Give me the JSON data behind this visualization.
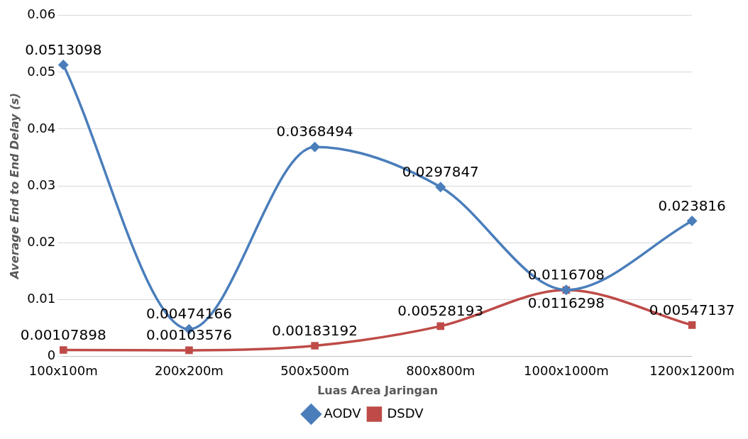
{
  "chart_data": {
    "type": "line",
    "xlabel": "Luas Area Jaringan",
    "ylabel": "Average End to End Delay (s)",
    "categories": [
      "100x100m",
      "200x200m",
      "500x500m",
      "800x800m",
      "1000x1000m",
      "1200x1200m"
    ],
    "series": [
      {
        "name": "AODV",
        "color": "#4a7ebb",
        "marker": "diamond",
        "values": [
          0.0513098,
          0.00474166,
          0.0368494,
          0.0297847,
          0.0116708,
          0.023816
        ]
      },
      {
        "name": "DSDV",
        "color": "#be4b48",
        "marker": "square",
        "values": [
          0.00107898,
          0.00103576,
          0.00183192,
          0.00528193,
          0.0116298,
          0.00547137
        ]
      }
    ],
    "ylim": [
      0,
      0.06
    ],
    "yticks": [
      0,
      0.01,
      0.02,
      0.03,
      0.04,
      0.05,
      0.06
    ],
    "grid": "y",
    "legend": "bottom",
    "data_labels": true
  }
}
